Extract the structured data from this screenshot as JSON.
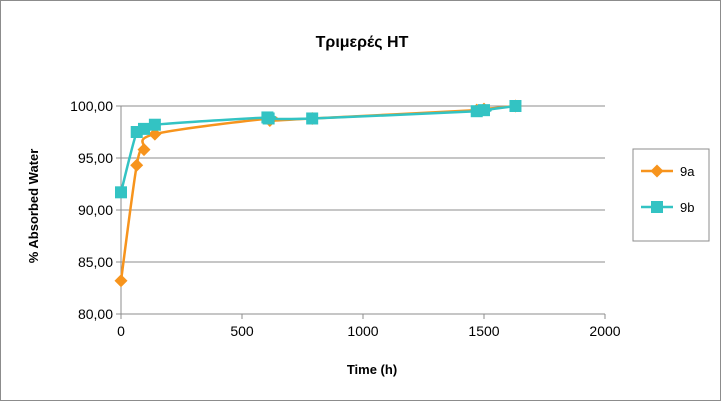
{
  "chart_data": {
    "type": "line",
    "title": "Τριμερές HT",
    "xlabel": "Time (h)",
    "ylabel": "% Absorbed Water",
    "xlim": [
      0,
      2000
    ],
    "ylim": [
      80,
      100
    ],
    "x_ticks": [
      "0",
      "500",
      "1000",
      "1500",
      "2000"
    ],
    "x_tick_values": [
      0,
      500,
      1000,
      1500,
      2000
    ],
    "y_ticks": [
      "80,00",
      "85,00",
      "90,00",
      "95,00",
      "100,00"
    ],
    "y_tick_values": [
      80,
      85,
      90,
      95,
      100
    ],
    "grid": "horizontal major gridlines",
    "legend_position": "right",
    "series": [
      {
        "name": "9a",
        "color": "#f7941d",
        "marker": "diamond",
        "x": [
          0,
          65,
          95,
          140,
          610,
          615,
          790,
          1470,
          1500,
          1630
        ],
        "y": [
          83.2,
          94.3,
          95.8,
          97.3,
          98.8,
          98.6,
          98.8,
          99.6,
          99.7,
          100.0
        ]
      },
      {
        "name": "9b",
        "color": "#33c3c3",
        "marker": "square",
        "x": [
          0,
          65,
          95,
          140,
          605,
          610,
          790,
          1470,
          1500,
          1630
        ],
        "y": [
          91.7,
          97.5,
          97.8,
          98.2,
          98.9,
          98.8,
          98.8,
          99.5,
          99.6,
          100.0
        ]
      }
    ]
  }
}
